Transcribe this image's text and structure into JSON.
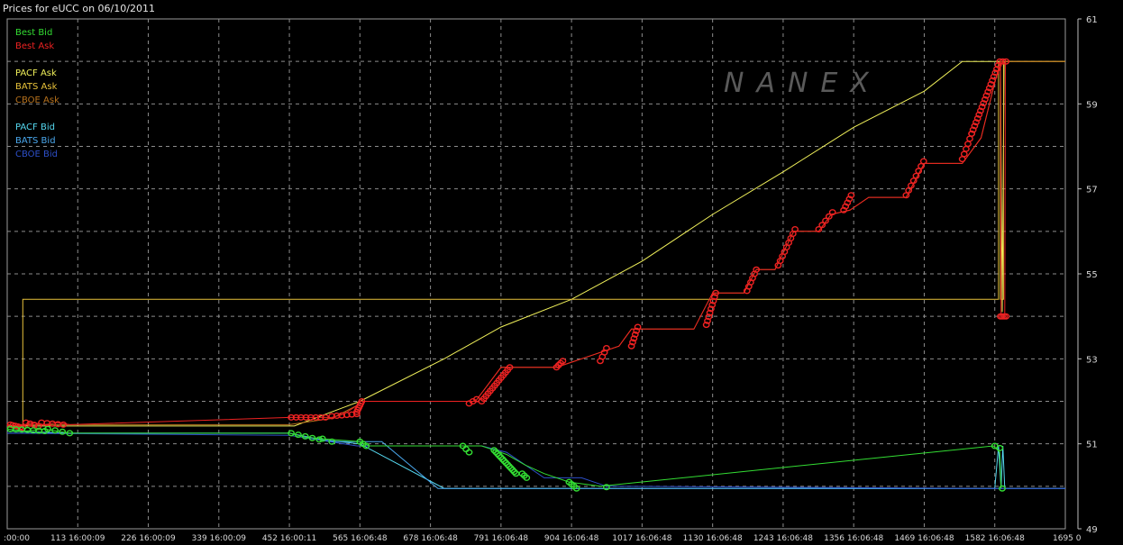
{
  "chart_data": {
    "type": "line",
    "title": "Prices for  eUCC  on  06/10/2011",
    "watermark": "NANEX",
    "xlabel": "",
    "ylabel": "",
    "xlim": [
      0,
      1695
    ],
    "ylim": [
      49,
      61
    ],
    "y_ticks": [
      61,
      59,
      57,
      55,
      53,
      51,
      49
    ],
    "x_ticks": [
      {
        "x": 0,
        "label": ":00:00"
      },
      {
        "x": 113,
        "label": "113 16:00:09"
      },
      {
        "x": 226,
        "label": "226 16:00:09"
      },
      {
        "x": 339,
        "label": "339 16:00:09"
      },
      {
        "x": 452,
        "label": "452 16:00:11"
      },
      {
        "x": 565,
        "label": "565 16:06:48"
      },
      {
        "x": 678,
        "label": "678 16:06:48"
      },
      {
        "x": 791,
        "label": "791 16:06:48"
      },
      {
        "x": 904,
        "label": "904 16:06:48"
      },
      {
        "x": 1017,
        "label": "1017 16:06:48"
      },
      {
        "x": 1130,
        "label": "1130 16:06:48"
      },
      {
        "x": 1243,
        "label": "1243 16:06:48"
      },
      {
        "x": 1356,
        "label": "1356 16:06:48"
      },
      {
        "x": 1469,
        "label": "1469 16:06:48"
      },
      {
        "x": 1582,
        "label": "1582 16:06:48"
      },
      {
        "x": 1695,
        "label": "1695 0"
      }
    ],
    "grid": true,
    "legend_position": "top-left",
    "legend": [
      {
        "name": "Best Bid",
        "color": "#33dd33"
      },
      {
        "name": "Best Ask",
        "color": "#ee2222"
      },
      {
        "name": "",
        "color": ""
      },
      {
        "name": "PACF Ask",
        "color": "#f0f05a"
      },
      {
        "name": "BATS Ask",
        "color": "#e8c23a"
      },
      {
        "name": "CBOE Ask",
        "color": "#b8721c"
      },
      {
        "name": "",
        "color": ""
      },
      {
        "name": "PACF Bid",
        "color": "#55d8f0"
      },
      {
        "name": "BATS Bid",
        "color": "#4aa8ee"
      },
      {
        "name": "CBOE Bid",
        "color": "#2d4fc8"
      }
    ],
    "series": [
      {
        "name": "PACF Ask",
        "color": "#f0f05a",
        "points": [
          [
            0,
            51.42
          ],
          [
            460,
            51.42
          ],
          [
            565,
            52.0
          ],
          [
            700,
            53.0
          ],
          [
            791,
            53.75
          ],
          [
            904,
            54.4
          ],
          [
            1017,
            55.3
          ],
          [
            1130,
            56.4
          ],
          [
            1243,
            57.4
          ],
          [
            1356,
            58.45
          ],
          [
            1469,
            59.3
          ],
          [
            1530,
            60.0
          ],
          [
            1580,
            60.0
          ],
          [
            1591,
            60.0
          ],
          [
            1594,
            54.1
          ],
          [
            1597,
            60.0
          ],
          [
            1695,
            60.0
          ]
        ]
      },
      {
        "name": "BATS Ask",
        "color": "#e8c23a",
        "points": [
          [
            0,
            51.4
          ],
          [
            25,
            51.4
          ],
          [
            25,
            54.4
          ],
          [
            1588,
            54.4
          ],
          [
            1588,
            60.0
          ],
          [
            1591,
            60.0
          ],
          [
            1591,
            54.4
          ],
          [
            1596,
            54.4
          ],
          [
            1596,
            60.0
          ],
          [
            1695,
            60.0
          ]
        ]
      },
      {
        "name": "CBOE Ask",
        "color": "#b8721c",
        "points": [
          [
            0,
            51.4
          ],
          [
            25,
            51.4
          ],
          [
            25,
            51.45
          ],
          [
            452,
            51.45
          ],
          [
            520,
            51.6
          ],
          [
            560,
            51.9
          ],
          [
            565,
            52.0
          ],
          [
            750,
            52.0
          ],
          [
            791,
            52.8
          ],
          [
            880,
            52.8
          ],
          [
            920,
            53.0
          ],
          [
            980,
            53.3
          ],
          [
            1000,
            53.7
          ],
          [
            1100,
            53.7
          ],
          [
            1130,
            54.55
          ],
          [
            1180,
            54.55
          ],
          [
            1200,
            55.1
          ],
          [
            1230,
            55.1
          ],
          [
            1260,
            56.0
          ],
          [
            1300,
            56.0
          ],
          [
            1320,
            56.4
          ],
          [
            1350,
            56.5
          ],
          [
            1380,
            56.8
          ],
          [
            1440,
            56.8
          ],
          [
            1469,
            57.6
          ],
          [
            1530,
            57.6
          ],
          [
            1560,
            58.2
          ],
          [
            1582,
            59.5
          ],
          [
            1591,
            60.0
          ],
          [
            1695,
            60.0
          ]
        ]
      },
      {
        "name": "Best Ask",
        "color": "#ee2222",
        "points": [
          [
            0,
            51.45
          ],
          [
            20,
            51.42
          ],
          [
            40,
            51.5
          ],
          [
            60,
            51.45
          ],
          [
            80,
            51.5
          ],
          [
            100,
            51.45
          ],
          [
            452,
            51.62
          ],
          [
            520,
            51.62
          ],
          [
            540,
            51.7
          ],
          [
            560,
            51.9
          ],
          [
            565,
            52.0
          ],
          [
            750,
            52.0
          ],
          [
            791,
            52.8
          ],
          [
            880,
            52.8
          ],
          [
            920,
            53.0
          ],
          [
            980,
            53.3
          ],
          [
            1000,
            53.7
          ],
          [
            1100,
            53.7
          ],
          [
            1130,
            54.55
          ],
          [
            1180,
            54.55
          ],
          [
            1200,
            55.1
          ],
          [
            1230,
            55.1
          ],
          [
            1260,
            56.0
          ],
          [
            1300,
            56.0
          ],
          [
            1320,
            56.4
          ],
          [
            1350,
            56.5
          ],
          [
            1380,
            56.8
          ],
          [
            1440,
            56.8
          ],
          [
            1469,
            57.6
          ],
          [
            1530,
            57.6
          ],
          [
            1560,
            58.2
          ],
          [
            1582,
            59.5
          ],
          [
            1591,
            60.0
          ],
          [
            1592,
            54.0
          ],
          [
            1598,
            54.0
          ],
          [
            1599,
            60.0
          ]
        ]
      },
      {
        "name": "PACF Bid",
        "color": "#55d8f0",
        "points": [
          [
            0,
            51.3
          ],
          [
            100,
            51.25
          ],
          [
            452,
            51.25
          ],
          [
            500,
            51.1
          ],
          [
            565,
            51.0
          ],
          [
            700,
            49.95
          ],
          [
            1582,
            49.95
          ],
          [
            1588,
            50.95
          ],
          [
            1592,
            49.95
          ],
          [
            1595,
            50.95
          ],
          [
            1598,
            49.95
          ],
          [
            1695,
            49.95
          ]
        ]
      },
      {
        "name": "BATS Bid",
        "color": "#4aa8ee",
        "points": [
          [
            0,
            51.25
          ],
          [
            452,
            51.25
          ],
          [
            520,
            51.05
          ],
          [
            600,
            51.05
          ],
          [
            690,
            49.95
          ],
          [
            1695,
            49.95
          ]
        ]
      },
      {
        "name": "CBOE Bid",
        "color": "#2d4fc8",
        "points": [
          [
            0,
            51.25
          ],
          [
            452,
            51.2
          ],
          [
            560,
            50.95
          ],
          [
            760,
            50.95
          ],
          [
            800,
            50.8
          ],
          [
            860,
            50.2
          ],
          [
            920,
            50.2
          ],
          [
            960,
            50.0
          ],
          [
            1582,
            49.95
          ],
          [
            1695,
            49.95
          ]
        ]
      },
      {
        "name": "Best Bid",
        "color": "#33dd33",
        "points": [
          [
            0,
            51.35
          ],
          [
            30,
            51.3
          ],
          [
            60,
            51.35
          ],
          [
            100,
            51.25
          ],
          [
            452,
            51.25
          ],
          [
            480,
            51.15
          ],
          [
            520,
            51.1
          ],
          [
            565,
            51.05
          ],
          [
            580,
            50.95
          ],
          [
            760,
            50.95
          ],
          [
            780,
            50.85
          ],
          [
            800,
            50.75
          ],
          [
            830,
            50.5
          ],
          [
            860,
            50.3
          ],
          [
            900,
            50.1
          ],
          [
            950,
            50.0
          ],
          [
            1580,
            50.95
          ],
          [
            1590,
            50.8
          ],
          [
            1592,
            49.95
          ]
        ]
      }
    ],
    "markers": {
      "best_ask": {
        "color": "#ee2222",
        "clusters": [
          [
            5,
            25,
            51.45,
            51.38,
            6
          ],
          [
            30,
            50,
            51.5,
            51.42,
            4
          ],
          [
            55,
            90,
            51.5,
            51.45,
            5
          ],
          [
            455,
            510,
            51.62,
            51.62,
            8
          ],
          [
            520,
            560,
            51.65,
            51.7,
            6
          ],
          [
            560,
            568,
            51.75,
            52.0,
            6
          ],
          [
            740,
            752,
            51.95,
            52.05,
            3
          ],
          [
            760,
            805,
            52.0,
            52.8,
            14
          ],
          [
            880,
            890,
            52.8,
            52.95,
            4
          ],
          [
            950,
            960,
            52.95,
            53.25,
            4
          ],
          [
            1000,
            1010,
            53.3,
            53.75,
            6
          ],
          [
            1120,
            1135,
            53.8,
            54.55,
            9
          ],
          [
            1185,
            1200,
            54.6,
            55.1,
            6
          ],
          [
            1235,
            1262,
            55.2,
            56.05,
            9
          ],
          [
            1300,
            1322,
            56.05,
            56.45,
            5
          ],
          [
            1340,
            1352,
            56.5,
            56.85,
            5
          ],
          [
            1440,
            1468,
            56.85,
            57.65,
            8
          ],
          [
            1530,
            1545,
            57.7,
            58.3,
            6
          ],
          [
            1545,
            1590,
            58.3,
            60.0,
            20
          ],
          [
            1591,
            1600,
            54.0,
            54.0,
            4
          ],
          [
            1595,
            1600,
            60.0,
            60.0,
            2
          ]
        ]
      },
      "best_bid": {
        "color": "#33dd33",
        "clusters": [
          [
            5,
            60,
            51.35,
            51.3,
            7
          ],
          [
            65,
            100,
            51.35,
            51.25,
            4
          ],
          [
            455,
            500,
            51.25,
            51.1,
            5
          ],
          [
            505,
            520,
            51.12,
            51.05,
            2
          ],
          [
            565,
            575,
            51.05,
            50.95,
            3
          ],
          [
            730,
            740,
            50.95,
            50.8,
            3
          ],
          [
            780,
            815,
            50.85,
            50.3,
            14
          ],
          [
            825,
            832,
            50.3,
            50.2,
            3
          ],
          [
            900,
            912,
            50.1,
            49.95,
            4
          ],
          [
            960,
            965,
            49.98,
            49.98,
            1
          ],
          [
            1582,
            1590,
            50.95,
            50.9,
            2
          ],
          [
            1594,
            1598,
            49.95,
            49.95,
            1
          ]
        ]
      }
    }
  }
}
